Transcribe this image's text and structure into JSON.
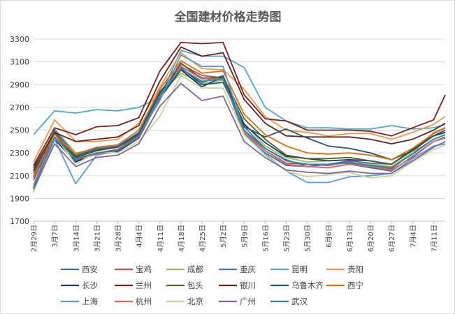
{
  "chart_data": {
    "type": "line",
    "title": "全国建材价格走势图",
    "xlabel": "",
    "ylabel": "",
    "ylim": [
      1700,
      3300
    ],
    "yticks": [
      1700,
      1900,
      2100,
      2300,
      2500,
      2700,
      2900,
      3100,
      3300
    ],
    "grid": true,
    "legend_position": "bottom",
    "x_tick_labels": [
      "2月29日",
      "3月7日",
      "3月14日",
      "3月21日",
      "3月28日",
      "4月4日",
      "4月11日",
      "4月18日",
      "4月25日",
      "5月2日",
      "5月9日",
      "5月16日",
      "5月23日",
      "5月30日",
      "6月6日",
      "6月13日",
      "6月20日",
      "6月27日",
      "7月4日",
      "7月11日"
    ],
    "anchor_tick_index": [
      0,
      1,
      2,
      3,
      4,
      5,
      6,
      7,
      8,
      9,
      10,
      11,
      12,
      13,
      14,
      15,
      16,
      17,
      18,
      19,
      19.55
    ],
    "series": [
      {
        "name": "西安",
        "color": "#2e75b6",
        "values": [
          2060,
          2470,
          2230,
          2290,
          2310,
          2440,
          2780,
          3060,
          2960,
          2950,
          2470,
          2300,
          2190,
          2180,
          2170,
          2200,
          2170,
          2140,
          2270,
          2400,
          2440
        ]
      },
      {
        "name": "宝鸡",
        "color": "#c0504d",
        "values": [
          2080,
          2490,
          2250,
          2300,
          2330,
          2460,
          2800,
          3080,
          2980,
          2960,
          2500,
          2320,
          2210,
          2200,
          2190,
          2220,
          2190,
          2160,
          2300,
          2420,
          2460
        ]
      },
      {
        "name": "成都",
        "color": "#9bbb59",
        "values": [
          2120,
          2510,
          2300,
          2330,
          2350,
          2470,
          2820,
          3000,
          2910,
          2940,
          2560,
          2360,
          2260,
          2220,
          2230,
          2240,
          2200,
          2180,
          2300,
          2480,
          2520
        ]
      },
      {
        "name": "重庆",
        "color": "#4472c4",
        "values": [
          2000,
          2500,
          2280,
          2340,
          2360,
          2480,
          2840,
          3040,
          2920,
          2980,
          2530,
          2340,
          2240,
          2180,
          2200,
          2230,
          2210,
          2200,
          2320,
          2450,
          2480
        ]
      },
      {
        "name": "昆明",
        "color": "#4bacc6",
        "values": [
          2460,
          2670,
          2650,
          2680,
          2670,
          2700,
          2790,
          3200,
          3150,
          3150,
          3050,
          2700,
          2580,
          2520,
          2520,
          2510,
          2510,
          2540,
          2510,
          2520,
          2550
        ]
      },
      {
        "name": "贵阳",
        "color": "#f79646",
        "values": [
          2220,
          2590,
          2400,
          2400,
          2420,
          2560,
          2880,
          3180,
          3040,
          3030,
          2860,
          2620,
          2500,
          2480,
          2450,
          2470,
          2470,
          2420,
          2480,
          2550,
          2620
        ]
      },
      {
        "name": "长沙",
        "color": "#1f3864",
        "values": [
          2140,
          2420,
          2220,
          2300,
          2310,
          2430,
          2780,
          3030,
          2880,
          2970,
          2550,
          2390,
          2270,
          2250,
          2230,
          2240,
          2230,
          2200,
          2330,
          2450,
          2480
        ]
      },
      {
        "name": "兰州",
        "color": "#7b1f1f",
        "values": [
          2190,
          2520,
          2460,
          2530,
          2540,
          2610,
          3020,
          3270,
          3260,
          3270,
          2810,
          2600,
          2580,
          2500,
          2500,
          2500,
          2490,
          2450,
          2520,
          2590,
          2810
        ]
      },
      {
        "name": "包头",
        "color": "#4f6228",
        "values": [
          2120,
          2480,
          2270,
          2330,
          2350,
          2460,
          2820,
          3090,
          2950,
          2970,
          2600,
          2420,
          2280,
          2250,
          2250,
          2260,
          2230,
          2200,
          2320,
          2470,
          2520
        ]
      },
      {
        "name": "银川",
        "color": "#632523",
        "values": [
          2170,
          2480,
          2400,
          2420,
          2440,
          2540,
          2930,
          3230,
          3150,
          3180,
          2770,
          2560,
          2450,
          2440,
          2440,
          2440,
          2420,
          2380,
          2420,
          2500,
          2560
        ]
      },
      {
        "name": "乌鲁木齐",
        "color": "#215967",
        "values": [
          2150,
          2450,
          2260,
          2320,
          2350,
          2470,
          2830,
          3050,
          2900,
          2920,
          2530,
          2440,
          2510,
          2430,
          2360,
          2340,
          2300,
          2240,
          2320,
          2450,
          2500
        ]
      },
      {
        "name": "西宁",
        "color": "#e46c0a",
        "values": [
          2100,
          2460,
          2290,
          2350,
          2370,
          2500,
          2860,
          3110,
          3000,
          3020,
          2640,
          2460,
          2360,
          2300,
          2290,
          2300,
          2280,
          2240,
          2340,
          2470,
          2520
        ]
      },
      {
        "name": "上海",
        "color": "#5b9bd5",
        "values": [
          1960,
          2420,
          2030,
          2280,
          2320,
          2450,
          2760,
          3160,
          3060,
          3060,
          2490,
          2290,
          2140,
          2040,
          2040,
          2090,
          2100,
          2120,
          2250,
          2360,
          2380
        ]
      },
      {
        "name": "杭州",
        "color": "#e06666",
        "values": [
          2020,
          2450,
          2240,
          2290,
          2320,
          2440,
          2790,
          3060,
          2950,
          2950,
          2480,
          2320,
          2200,
          2180,
          2170,
          2200,
          2180,
          2150,
          2260,
          2400,
          2430
        ]
      },
      {
        "name": "北京",
        "color": "#c4d79b",
        "values": [
          1950,
          2450,
          2200,
          2310,
          2300,
          2400,
          2620,
          2980,
          2870,
          2870,
          2460,
          2280,
          2140,
          2090,
          2110,
          2130,
          2080,
          2100,
          2220,
          2330,
          2370
        ]
      },
      {
        "name": "广州",
        "color": "#8064a2",
        "values": [
          1980,
          2380,
          2180,
          2260,
          2280,
          2380,
          2710,
          2910,
          2760,
          2800,
          2400,
          2260,
          2150,
          2130,
          2120,
          2140,
          2120,
          2120,
          2230,
          2350,
          2400
        ]
      },
      {
        "name": "武汉",
        "color": "#31859c",
        "values": [
          1990,
          2440,
          2240,
          2300,
          2320,
          2450,
          2800,
          3040,
          2930,
          2950,
          2500,
          2340,
          2230,
          2200,
          2200,
          2210,
          2190,
          2170,
          2290,
          2420,
          2460
        ]
      }
    ]
  }
}
